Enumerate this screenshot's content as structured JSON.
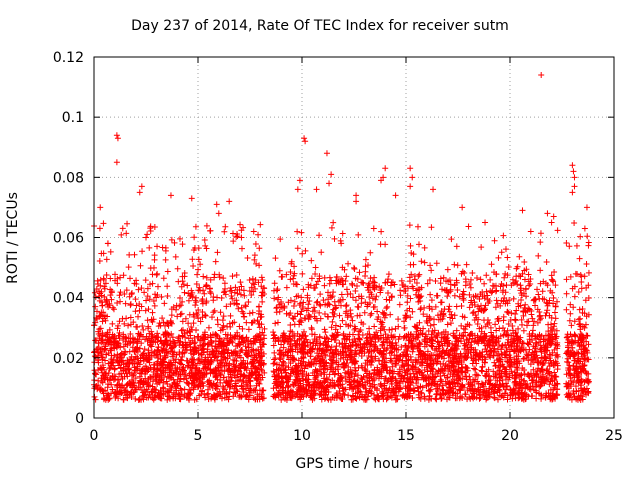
{
  "chart_data": {
    "type": "scatter",
    "title": "Day 237 of 2014, Rate Of TEC Index for receiver sutm",
    "xlabel": "GPS time / hours",
    "ylabel": "ROTI / TECUs",
    "xlim": [
      0,
      25
    ],
    "ylim": [
      0,
      0.12
    ],
    "x_ticks": [
      "0",
      "5",
      "10",
      "15",
      "20",
      "25"
    ],
    "y_ticks": [
      "0",
      "0.02",
      "0.04",
      "0.06",
      "0.08",
      "0.1",
      "0.12"
    ],
    "grid": true,
    "marker": "+",
    "color": "#ff0000",
    "data_gaps_hours": [
      [
        8.2,
        8.6
      ],
      [
        22.3,
        22.7
      ]
    ],
    "points": [
      [
        1.1,
        0.094
      ],
      [
        1.15,
        0.093
      ],
      [
        1.1,
        0.085
      ],
      [
        0.3,
        0.07
      ],
      [
        2.3,
        0.077
      ],
      [
        2.2,
        0.075
      ],
      [
        3.7,
        0.074
      ],
      [
        4.7,
        0.073
      ],
      [
        6.5,
        0.072
      ],
      [
        5.9,
        0.071
      ],
      [
        6.0,
        0.068
      ],
      [
        9.8,
        0.076
      ],
      [
        9.9,
        0.079
      ],
      [
        10.1,
        0.093
      ],
      [
        10.15,
        0.092
      ],
      [
        10.7,
        0.076
      ],
      [
        11.2,
        0.088
      ],
      [
        11.4,
        0.081
      ],
      [
        11.3,
        0.078
      ],
      [
        12.6,
        0.074
      ],
      [
        12.6,
        0.072
      ],
      [
        13.8,
        0.079
      ],
      [
        13.9,
        0.08
      ],
      [
        14.0,
        0.083
      ],
      [
        14.5,
        0.074
      ],
      [
        15.2,
        0.083
      ],
      [
        15.3,
        0.08
      ],
      [
        15.2,
        0.077
      ],
      [
        16.3,
        0.076
      ],
      [
        17.7,
        0.07
      ],
      [
        18.8,
        0.065
      ],
      [
        20.6,
        0.069
      ],
      [
        21.0,
        0.062
      ],
      [
        21.5,
        0.114
      ],
      [
        21.8,
        0.068
      ],
      [
        22.1,
        0.067
      ],
      [
        22.0,
        0.065
      ],
      [
        23.0,
        0.084
      ],
      [
        23.05,
        0.082
      ],
      [
        23.1,
        0.08
      ],
      [
        23.1,
        0.077
      ],
      [
        23.0,
        0.075
      ],
      [
        23.7,
        0.07
      ],
      [
        23.6,
        0.063
      ]
    ]
  }
}
